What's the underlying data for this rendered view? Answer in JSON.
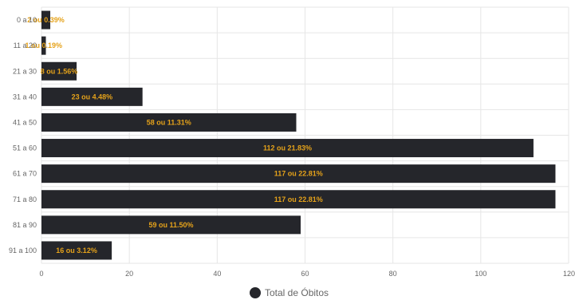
{
  "chart_data": {
    "type": "bar",
    "orientation": "horizontal",
    "categories": [
      "0 a 10",
      "11 a 20",
      "21 a 30",
      "31 a 40",
      "41 a 50",
      "51 a 60",
      "61 a 70",
      "71 a 80",
      "81 a 90",
      "91 a 100"
    ],
    "series": [
      {
        "name": "Total de Óbitos",
        "values": [
          2,
          1,
          8,
          23,
          58,
          112,
          117,
          117,
          59,
          16
        ],
        "labels": [
          "2 ou 0.39%",
          "1 ou 0.19%",
          "8 ou 1.56%",
          "23 ou 4.48%",
          "58 ou 11.31%",
          "112 ou 21.83%",
          "117 ou 22.81%",
          "117 ou 22.81%",
          "59 ou 11.50%",
          "16 ou 3.12%"
        ],
        "color": "#25262b",
        "label_color": "#e5a21a"
      }
    ],
    "xlim": [
      0,
      120
    ],
    "xticks": [
      "0",
      "20",
      "40",
      "60",
      "80",
      "100",
      "120"
    ],
    "grid": true,
    "legend_position": "bottom"
  }
}
